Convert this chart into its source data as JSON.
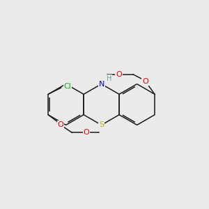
{
  "background_color": "#ebebeb",
  "bond_color": "#1a1a1a",
  "atom_colors": {
    "S": "#b8b800",
    "N": "#0000cc",
    "O": "#ee0000",
    "Cl": "#00bb00",
    "H": "#7a9a9a",
    "C": "#1a1a1a"
  },
  "figsize": [
    3.0,
    3.0
  ],
  "dpi": 100,
  "xlim": [
    0,
    10
  ],
  "ylim": [
    0,
    10
  ]
}
